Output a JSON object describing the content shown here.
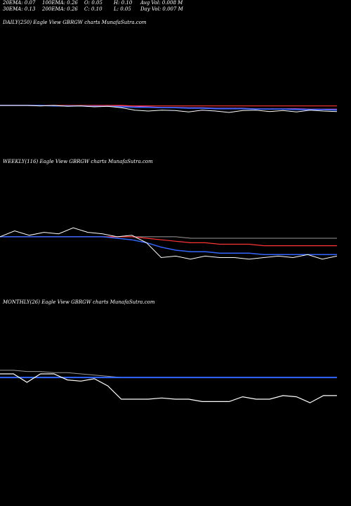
{
  "stats": {
    "ema20": "20EMA: 0.07",
    "ema100": "100EMA: 0.26",
    "open": "O: 0.05",
    "high": "H: 0.10",
    "avg_vol": "Avg Vol: 0.008 M",
    "ema30": "30EMA: 0.13",
    "ema200": "200EMA: 0.26",
    "close": "C: 0.10",
    "low": "L: 0.05",
    "day_vol": "Day Vol: 0.007 M"
  },
  "panels": {
    "daily": "DAILY(250) Eagle  View  GBRGW charts MunafaSutra.com",
    "weekly": "WEEKLY(116) Eagle  View  GBRGW charts MunafaSutra.com",
    "monthly": "MONTHLY(26) Eagle  View  GBRGW charts MunafaSutra.com"
  },
  "colors": {
    "background": "#000000",
    "price": "#ffffff",
    "ema_short": "#3366ff",
    "ema_long": "#ff3333",
    "ema_mid": "#cc66ff",
    "ema_gray": "#999999"
  },
  "chart_data": [
    {
      "type": "line",
      "title": "DAILY(250) Eagle  View  GBRGW charts MunafaSutra.com",
      "x": [
        0,
        10,
        20,
        30,
        40,
        50,
        60,
        70,
        80,
        90,
        100,
        110,
        120,
        130,
        140,
        150,
        160,
        170,
        180,
        190,
        200,
        210,
        220,
        230,
        240,
        250
      ],
      "series": [
        {
          "values": [
            0.26,
            0.26,
            0.26,
            0.259,
            0.26,
            0.258,
            0.259,
            0.257,
            0.258,
            0.255,
            0.25,
            0.248,
            0.25,
            0.249,
            0.246,
            0.25,
            0.248,
            0.245,
            0.249,
            0.25,
            0.247,
            0.249,
            0.246,
            0.25,
            0.248,
            0.247
          ]
        },
        {
          "values": [
            0.26,
            0.26,
            0.26,
            0.26,
            0.259,
            0.259,
            0.259,
            0.258,
            0.258,
            0.257,
            0.256,
            0.256,
            0.255,
            0.255,
            0.254,
            0.254,
            0.253,
            0.253,
            0.253,
            0.252,
            0.252,
            0.252,
            0.251,
            0.251,
            0.251,
            0.25
          ]
        },
        {
          "values": [
            0.26,
            0.26,
            0.26,
            0.26,
            0.26,
            0.26,
            0.26,
            0.26,
            0.26,
            0.26,
            0.259,
            0.259,
            0.259,
            0.259,
            0.259,
            0.259,
            0.259,
            0.259,
            0.259,
            0.259,
            0.259,
            0.259,
            0.259,
            0.259,
            0.259,
            0.259
          ]
        },
        {
          "values": [
            0.26,
            0.26,
            0.26,
            0.26,
            0.26,
            0.26,
            0.26,
            0.259,
            0.259,
            0.259,
            0.258,
            0.257,
            0.256,
            0.256,
            0.255,
            0.255,
            0.254,
            0.254,
            0.254,
            0.253,
            0.253,
            0.253,
            0.253,
            0.252,
            0.252,
            0.252
          ]
        }
      ]
    },
    {
      "type": "line",
      "title": "WEEKLY(116) Eagle  View  GBRGW charts MunafaSutra.com",
      "x": [
        0,
        5,
        10,
        15,
        20,
        25,
        30,
        35,
        40,
        45,
        50,
        55,
        60,
        65,
        70,
        75,
        80,
        85,
        90,
        95,
        100,
        105,
        110,
        115
      ],
      "series": [
        {
          "values": [
            0.3,
            0.34,
            0.31,
            0.33,
            0.32,
            0.36,
            0.33,
            0.32,
            0.3,
            0.31,
            0.26,
            0.16,
            0.17,
            0.15,
            0.17,
            0.16,
            0.16,
            0.15,
            0.16,
            0.17,
            0.16,
            0.18,
            0.15,
            0.17
          ]
        },
        {
          "values": [
            0.3,
            0.3,
            0.3,
            0.3,
            0.3,
            0.3,
            0.3,
            0.3,
            0.29,
            0.28,
            0.26,
            0.23,
            0.21,
            0.2,
            0.2,
            0.19,
            0.19,
            0.19,
            0.18,
            0.18,
            0.18,
            0.18,
            0.18,
            0.18
          ]
        },
        {
          "values": [
            0.3,
            0.3,
            0.3,
            0.3,
            0.3,
            0.3,
            0.3,
            0.3,
            0.3,
            0.3,
            0.29,
            0.28,
            0.27,
            0.26,
            0.26,
            0.25,
            0.25,
            0.25,
            0.24,
            0.24,
            0.24,
            0.24,
            0.24,
            0.24
          ]
        },
        {
          "values": [
            0.3,
            0.3,
            0.3,
            0.3,
            0.3,
            0.3,
            0.3,
            0.3,
            0.3,
            0.3,
            0.3,
            0.3,
            0.3,
            0.29,
            0.29,
            0.29,
            0.29,
            0.29,
            0.29,
            0.29,
            0.29,
            0.29,
            0.29,
            0.29
          ]
        }
      ]
    },
    {
      "type": "line",
      "title": "MONTHLY(26) Eagle  View  GBRGW charts MunafaSutra.com",
      "x": [
        1,
        2,
        3,
        4,
        5,
        6,
        7,
        8,
        9,
        10,
        11,
        12,
        13,
        14,
        15,
        16,
        17,
        18,
        19,
        20,
        21,
        22,
        23,
        24,
        25,
        26
      ],
      "series": [
        {
          "values": [
            0.33,
            0.33,
            0.26,
            0.33,
            0.33,
            0.28,
            0.27,
            0.29,
            0.23,
            0.12,
            0.12,
            0.12,
            0.13,
            0.12,
            0.12,
            0.1,
            0.1,
            0.1,
            0.14,
            0.12,
            0.12,
            0.15,
            0.14,
            0.09,
            0.15,
            0.15
          ]
        },
        {
          "values": [
            0.3,
            0.3,
            0.3,
            0.3,
            0.3,
            0.3,
            0.3,
            0.3,
            0.3,
            0.3,
            0.3,
            0.3,
            0.3,
            0.3,
            0.3,
            0.3,
            0.3,
            0.3,
            0.3,
            0.3,
            0.3,
            0.3,
            0.3,
            0.3,
            0.3,
            0.3
          ]
        },
        {
          "values": [
            0.36,
            0.36,
            0.35,
            0.35,
            0.34,
            0.34,
            0.33,
            0.32,
            0.31,
            0.3,
            0.3,
            0.3,
            0.3,
            0.3,
            0.3,
            0.3,
            0.3,
            0.3,
            0.3,
            0.3,
            0.3,
            0.3,
            0.3,
            0.3,
            0.3,
            0.3
          ]
        }
      ]
    }
  ]
}
